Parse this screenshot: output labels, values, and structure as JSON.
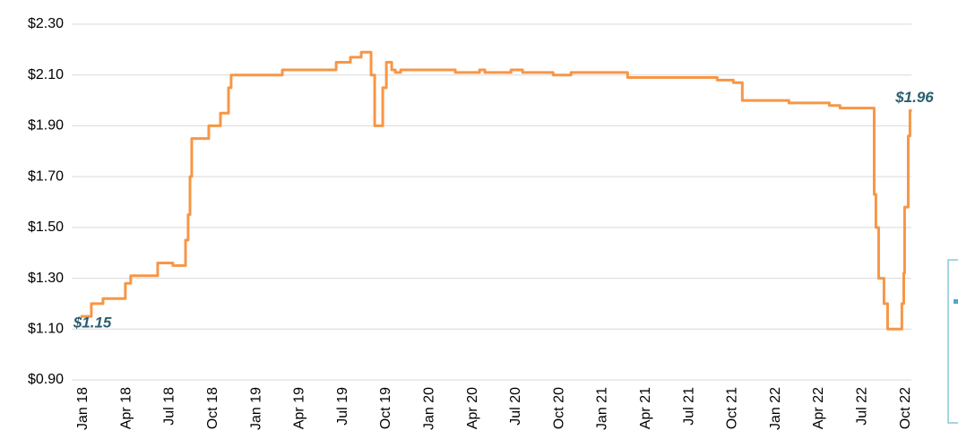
{
  "chart_data": {
    "type": "line",
    "color": "#f79646",
    "grid": true,
    "xlim": [
      -0.8,
      57.4
    ],
    "ylim": [
      0.9,
      2.3
    ],
    "xticks": [
      {
        "value": 0,
        "label": "Jan 18"
      },
      {
        "value": 3,
        "label": "Apr 18"
      },
      {
        "value": 6,
        "label": "Jul 18"
      },
      {
        "value": 9,
        "label": "Oct 18"
      },
      {
        "value": 12,
        "label": "Jan 19"
      },
      {
        "value": 15,
        "label": "Apr 19"
      },
      {
        "value": 18,
        "label": "Jul 19"
      },
      {
        "value": 21,
        "label": "Oct 19"
      },
      {
        "value": 24,
        "label": "Jan 20"
      },
      {
        "value": 27,
        "label": "Apr 20"
      },
      {
        "value": 30,
        "label": "Jul 20"
      },
      {
        "value": 33,
        "label": "Oct 20"
      },
      {
        "value": 36,
        "label": "Jan 21"
      },
      {
        "value": 39,
        "label": "Apr 21"
      },
      {
        "value": 42,
        "label": "Jul 21"
      },
      {
        "value": 45,
        "label": "Oct 21"
      },
      {
        "value": 48,
        "label": "Jan 22"
      },
      {
        "value": 51,
        "label": "Apr 22"
      },
      {
        "value": 54,
        "label": "Jul 22"
      },
      {
        "value": 57,
        "label": "Oct 22"
      }
    ],
    "yticks": [
      {
        "value": 0.9,
        "label": "$0.90"
      },
      {
        "value": 1.1,
        "label": "$1.10"
      },
      {
        "value": 1.3,
        "label": "$1.30"
      },
      {
        "value": 1.5,
        "label": "$1.50"
      },
      {
        "value": 1.7,
        "label": "$1.70"
      },
      {
        "value": 1.9,
        "label": "$1.90"
      },
      {
        "value": 2.1,
        "label": "$2.10"
      },
      {
        "value": 2.3,
        "label": "$2.30"
      }
    ],
    "x": [
      -0.19,
      0.56,
      0.56,
      1.37,
      1.37,
      2.92,
      2.92,
      3.29,
      3.29,
      5.16,
      5.16,
      6.21,
      6.21,
      7.09,
      7.09,
      7.27,
      7.27,
      7.4,
      7.4,
      7.52,
      7.52,
      8.7,
      8.7,
      9.51,
      9.51,
      10.07,
      10.07,
      10.25,
      10.25,
      13.8,
      13.8,
      17.53,
      17.53,
      18.52,
      18.52,
      19.27,
      19.27,
      19.95,
      19.95,
      20.2,
      20.2,
      20.76,
      20.76,
      21.01,
      21.01,
      21.38,
      21.38,
      21.63,
      21.63,
      22.0,
      22.0,
      25.79,
      25.79,
      27.47,
      27.47,
      27.84,
      27.84,
      29.65,
      29.65,
      30.45,
      30.45,
      32.57,
      32.57,
      33.81,
      33.81,
      37.73,
      37.73,
      43.94,
      43.94,
      45.06,
      45.06,
      45.68,
      45.68,
      48.91,
      48.91,
      51.71,
      51.71,
      52.45,
      52.45,
      54.82,
      54.82,
      54.94,
      54.94,
      55.13,
      55.13,
      55.5,
      55.5,
      55.75,
      55.75,
      56.74,
      56.74,
      56.87,
      56.87,
      56.93,
      56.93,
      57.18,
      57.18,
      57.3,
      57.3,
      57.43
    ],
    "values": [
      1.15,
      1.15,
      1.2,
      1.2,
      1.22,
      1.22,
      1.28,
      1.28,
      1.31,
      1.31,
      1.36,
      1.36,
      1.35,
      1.35,
      1.45,
      1.45,
      1.55,
      1.55,
      1.7,
      1.7,
      1.85,
      1.85,
      1.9,
      1.9,
      1.95,
      1.95,
      2.05,
      2.05,
      2.1,
      2.1,
      2.12,
      2.12,
      2.15,
      2.15,
      2.17,
      2.17,
      2.19,
      2.19,
      2.1,
      2.1,
      1.9,
      1.9,
      2.05,
      2.05,
      2.15,
      2.15,
      2.12,
      2.12,
      2.11,
      2.11,
      2.12,
      2.12,
      2.11,
      2.11,
      2.12,
      2.12,
      2.11,
      2.11,
      2.12,
      2.12,
      2.11,
      2.11,
      2.1,
      2.1,
      2.11,
      2.11,
      2.09,
      2.09,
      2.08,
      2.08,
      2.07,
      2.07,
      2.0,
      2.0,
      1.99,
      1.99,
      1.98,
      1.98,
      1.97,
      1.97,
      1.63,
      1.63,
      1.5,
      1.5,
      1.3,
      1.3,
      1.2,
      1.2,
      1.1,
      1.1,
      1.2,
      1.2,
      1.32,
      1.32,
      1.58,
      1.58,
      1.86,
      1.86,
      1.96,
      1.96
    ],
    "annotations": [
      {
        "text": "$1.15",
        "x": -0.19,
        "y": 1.15
      },
      {
        "text": "$1.96",
        "x": 57.43,
        "y": 1.96
      }
    ]
  }
}
